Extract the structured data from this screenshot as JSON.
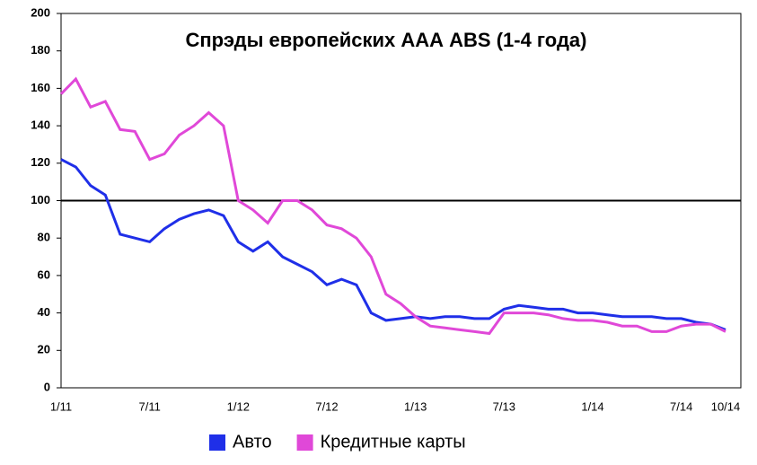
{
  "chart_data": {
    "type": "line",
    "title": "Спрэды европейских ААА ABS (1-4 года)",
    "categories": [
      "1/11",
      null,
      null,
      null,
      null,
      null,
      "7/11",
      null,
      null,
      null,
      null,
      null,
      "1/12",
      null,
      null,
      null,
      null,
      null,
      "7/12",
      null,
      null,
      null,
      null,
      null,
      "1/13",
      null,
      null,
      null,
      null,
      null,
      "7/13",
      null,
      null,
      null,
      null,
      null,
      "1/14",
      null,
      null,
      null,
      null,
      null,
      "7/14",
      null,
      null,
      "10/14"
    ],
    "series": [
      {
        "name": "Авто",
        "color": "#1f2fe8",
        "values": [
          122,
          118,
          108,
          103,
          82,
          80,
          78,
          85,
          90,
          93,
          95,
          92,
          78,
          73,
          78,
          70,
          66,
          62,
          55,
          58,
          55,
          40,
          36,
          37,
          38,
          37,
          38,
          38,
          37,
          37,
          42,
          44,
          43,
          42,
          42,
          40,
          40,
          39,
          38,
          38,
          38,
          37,
          37,
          35,
          34,
          31
        ]
      },
      {
        "name": "Кредитные карты",
        "color": "#e048d8",
        "values": [
          157,
          165,
          150,
          153,
          138,
          137,
          122,
          125,
          135,
          140,
          147,
          140,
          100,
          95,
          88,
          100,
          100,
          95,
          87,
          85,
          80,
          70,
          50,
          45,
          38,
          33,
          32,
          31,
          30,
          29,
          40,
          40,
          40,
          39,
          37,
          36,
          36,
          35,
          33,
          33,
          30,
          30,
          33,
          34,
          34,
          30
        ]
      }
    ],
    "ylim": [
      0,
      200
    ],
    "yticks": [
      0,
      20,
      40,
      60,
      80,
      100,
      120,
      140,
      160,
      180,
      200
    ],
    "hline": 100,
    "legend": "bottom"
  }
}
